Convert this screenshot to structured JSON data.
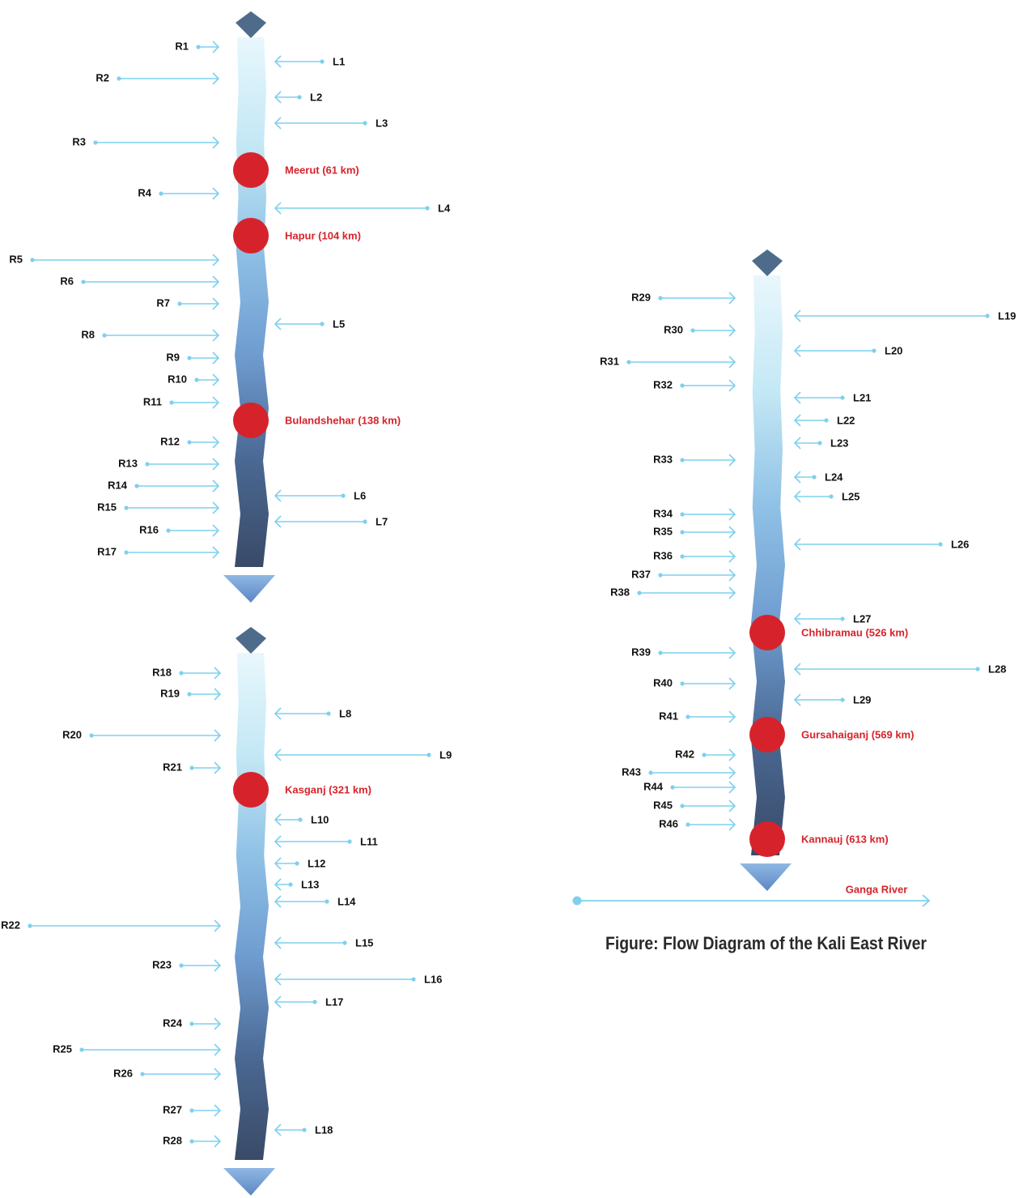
{
  "caption": "Figure: Flow Diagram of the Kali East River",
  "ganga_label": "Ganga River",
  "colors": {
    "arrow": "#7fd0ee",
    "city": "#d6232b",
    "source_marker": "#4f6b8c",
    "text": "#111111"
  },
  "panels": [
    {
      "id": "upper-left",
      "right_tributaries": [
        "R1",
        "R2",
        "R3",
        "R4",
        "R5",
        "R6",
        "R7",
        "R8",
        "R9",
        "R10",
        "R11",
        "R12",
        "R13",
        "R14",
        "R15",
        "R16",
        "R17"
      ],
      "left_tributaries": [
        "L1",
        "L2",
        "L3",
        "L4",
        "L5",
        "L6",
        "L7"
      ],
      "cities": [
        "Meerut (61 km)",
        "Hapur (104 km)",
        "Bulandshehar (138 km)"
      ]
    },
    {
      "id": "lower-left",
      "right_tributaries": [
        "R18",
        "R19",
        "R20",
        "R21",
        "R22",
        "R23",
        "R24",
        "R25",
        "R26",
        "R27",
        "R28"
      ],
      "left_tributaries": [
        "L8",
        "L9",
        "L10",
        "L11",
        "L12",
        "L13",
        "L14",
        "L15",
        "L16",
        "L17",
        "L18"
      ],
      "cities": [
        "Kasganj (321 km)"
      ]
    },
    {
      "id": "right",
      "right_tributaries": [
        "R29",
        "R30",
        "R31",
        "R32",
        "R33",
        "R34",
        "R35",
        "R36",
        "R37",
        "R38",
        "R39",
        "R40",
        "R41",
        "R42",
        "R43",
        "R44",
        "R45",
        "R46"
      ],
      "left_tributaries": [
        "L19",
        "L20",
        "L21",
        "L22",
        "L23",
        "L24",
        "L25",
        "L26",
        "L27",
        "L28",
        "L29"
      ],
      "cities": [
        "Chhibramau (526 km)",
        "Gursahaiganj (569 km)",
        "Kannauj (613 km)"
      ]
    }
  ]
}
